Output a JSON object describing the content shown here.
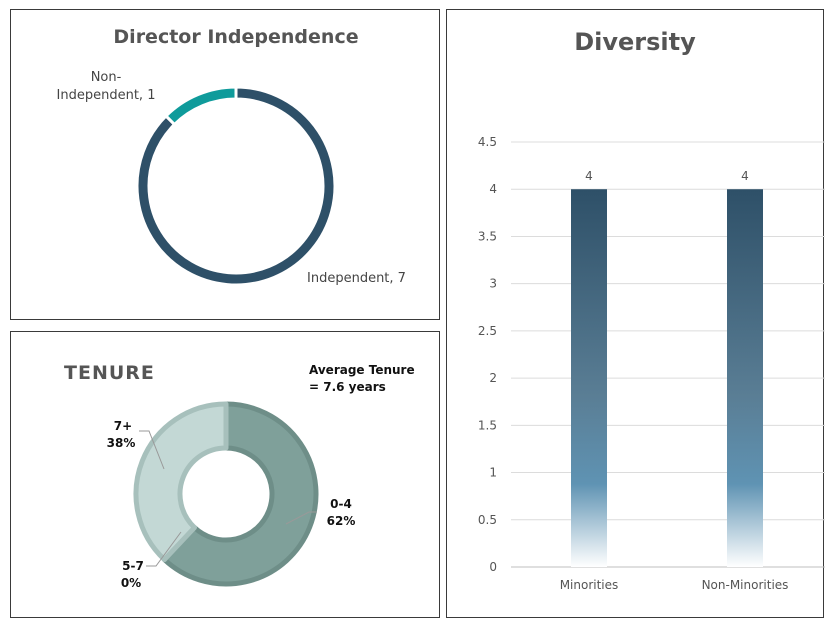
{
  "chart_data": [
    {
      "type": "pie",
      "variant": "doughnut",
      "title": "Director Independence",
      "slices": [
        {
          "label": "Independent",
          "value": 7,
          "color": "#2e5068",
          "text": "Independent, 7"
        },
        {
          "label": "Non-Independent",
          "value": 1,
          "color": "#0f9b9b",
          "text_lines": [
            "Non-",
            "Independent, 1"
          ]
        }
      ]
    },
    {
      "type": "pie",
      "variant": "doughnut",
      "title": "TENURE",
      "annotation_lines": [
        "Average Tenure",
        "= 7.6 years"
      ],
      "slices": [
        {
          "label": "0-4",
          "value": 62,
          "pct_text": "62%",
          "color": "#7fa09a"
        },
        {
          "label": "7+",
          "value": 38,
          "pct_text": "38%",
          "color": "#c3d8d5"
        },
        {
          "label": "5-7",
          "value": 0,
          "pct_text": "0%",
          "color": "#a9c4c0"
        }
      ]
    },
    {
      "type": "bar",
      "title": "Diversity",
      "categories": [
        "Minorities",
        "Non-Minorities"
      ],
      "values": [
        4,
        4
      ],
      "data_labels": [
        "4",
        "4"
      ],
      "ylim": [
        0,
        4.5
      ],
      "yticks": [
        "0",
        "0.5",
        "1",
        "1.5",
        "2",
        "2.5",
        "3",
        "3.5",
        "4",
        "4.5"
      ],
      "grid": true,
      "bar_color_top": "#2e5068",
      "bar_color_mid": "#5f93b3"
    }
  ]
}
